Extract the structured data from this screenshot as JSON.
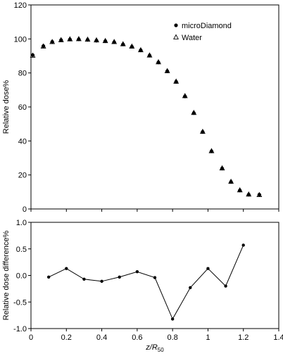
{
  "chart_data": [
    {
      "type": "scatter",
      "ylabel": "Relative dose%",
      "ylim": [
        0,
        120
      ],
      "xlim": [
        0,
        1.4
      ],
      "yticks": [
        0,
        20,
        40,
        60,
        80,
        100,
        120
      ],
      "legend": {
        "placement": "top-right"
      },
      "series": [
        {
          "name": "microDiamond",
          "marker": "filled-circle",
          "x": [
            0.01,
            0.07,
            0.12,
            0.17,
            0.22,
            0.27,
            0.32,
            0.37,
            0.42,
            0.47,
            0.52,
            0.57,
            0.62,
            0.67,
            0.72,
            0.77,
            0.82,
            0.87,
            0.92,
            0.97,
            1.02,
            1.08,
            1.13,
            1.18,
            1.23,
            1.29
          ],
          "y": [
            90.5,
            95.8,
            98.3,
            99.3,
            99.7,
            99.8,
            99.5,
            99.0,
            98.7,
            98.1,
            96.8,
            95.4,
            93.3,
            90.2,
            86.2,
            81.0,
            74.8,
            66.2,
            56.4,
            45.3,
            33.9,
            23.8,
            15.9,
            10.9,
            8.4,
            8.4
          ]
        },
        {
          "name": "Water",
          "marker": "open-triangle",
          "x": [
            0.01,
            0.07,
            0.12,
            0.17,
            0.22,
            0.27,
            0.32,
            0.37,
            0.42,
            0.47,
            0.52,
            0.57,
            0.62,
            0.67,
            0.72,
            0.77,
            0.82,
            0.87,
            0.92,
            0.97,
            1.02,
            1.08,
            1.13,
            1.18,
            1.23,
            1.29
          ],
          "y": [
            90.2,
            95.6,
            98.2,
            99.3,
            99.8,
            99.9,
            99.6,
            99.2,
            98.8,
            98.2,
            96.9,
            95.5,
            93.4,
            90.3,
            86.3,
            81.1,
            74.9,
            66.4,
            56.5,
            45.4,
            34.0,
            23.9,
            16.0,
            11.0,
            8.5,
            8.2
          ]
        }
      ]
    },
    {
      "type": "line",
      "xlabel_main": "z/R",
      "xlabel_sub": "50",
      "ylabel": "Relative dose difference%",
      "xlim": [
        0,
        1.4
      ],
      "ylim": [
        -1.0,
        1.0
      ],
      "xticks": [
        "0",
        "0.2",
        "0.4",
        "0.6",
        "0.8",
        "1",
        "1.2",
        "1.4"
      ],
      "xtick_values": [
        0,
        0.2,
        0.4,
        0.6,
        0.8,
        1.0,
        1.2,
        1.4
      ],
      "yticks": [
        "-1.0",
        "-0.5",
        "0.0",
        "0.5",
        "1.0"
      ],
      "ytick_values": [
        -1.0,
        -0.5,
        0.0,
        0.5,
        1.0
      ],
      "series": [
        {
          "x": [
            0.1,
            0.2,
            0.3,
            0.4,
            0.5,
            0.6,
            0.7,
            0.8,
            0.9,
            1.0,
            1.1,
            1.2
          ],
          "y": [
            -0.03,
            0.13,
            -0.07,
            -0.11,
            -0.03,
            0.07,
            -0.04,
            -0.82,
            -0.23,
            0.13,
            -0.2,
            0.57
          ]
        }
      ]
    }
  ]
}
